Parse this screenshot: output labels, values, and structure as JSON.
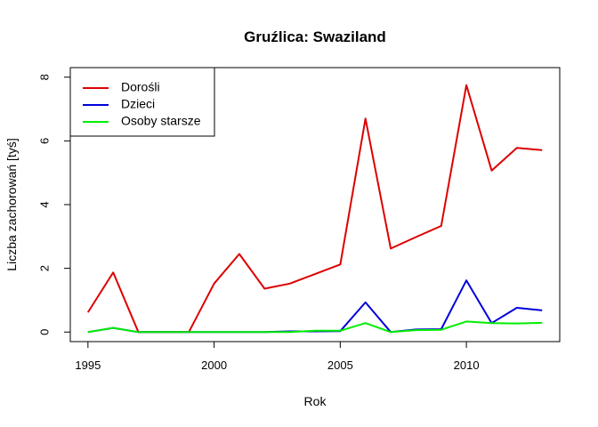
{
  "chart_data": {
    "type": "line",
    "title": "Gruźlica: Swaziland",
    "xlabel": "Rok",
    "ylabel": "Liczba zachorowań [tyś]",
    "xlim": [
      1994.3,
      2013.7
    ],
    "ylim": [
      -0.3,
      8.3
    ],
    "x_ticks": [
      1995,
      2000,
      2005,
      2010
    ],
    "y_ticks": [
      0,
      2,
      4,
      6,
      8
    ],
    "x_tick_labels": [
      "1995",
      "2000",
      "2005",
      "2010"
    ],
    "y_tick_labels": [
      "0",
      "2",
      "4",
      "6",
      "8"
    ],
    "grid": false,
    "legend": "top-left",
    "x": [
      1995,
      1996,
      1997,
      1998,
      1999,
      2000,
      2001,
      2002,
      2003,
      2004,
      2005,
      2006,
      2007,
      2008,
      2009,
      2010,
      2011,
      2012,
      2013
    ],
    "series": [
      {
        "name": "Dorośli",
        "color": "#dd0000",
        "values": [
          0.62,
          1.87,
          0.0,
          0.0,
          0.0,
          1.52,
          2.45,
          1.36,
          1.52,
          1.82,
          2.12,
          6.7,
          2.62,
          2.98,
          3.33,
          7.75,
          5.07,
          5.78,
          5.71
        ]
      },
      {
        "name": "Dzieci",
        "color": "#0000dd",
        "values": [
          0.0,
          0.13,
          0.0,
          0.0,
          0.0,
          0.0,
          0.0,
          0.0,
          0.02,
          0.02,
          0.03,
          0.93,
          0.0,
          0.08,
          0.09,
          1.62,
          0.28,
          0.76,
          0.68
        ]
      },
      {
        "name": "Osoby starsze",
        "color": "#00ee00",
        "values": [
          0.0,
          0.13,
          0.0,
          0.0,
          0.0,
          0.0,
          0.0,
          0.0,
          0.0,
          0.04,
          0.04,
          0.28,
          0.0,
          0.06,
          0.07,
          0.33,
          0.28,
          0.27,
          0.29
        ]
      }
    ]
  }
}
